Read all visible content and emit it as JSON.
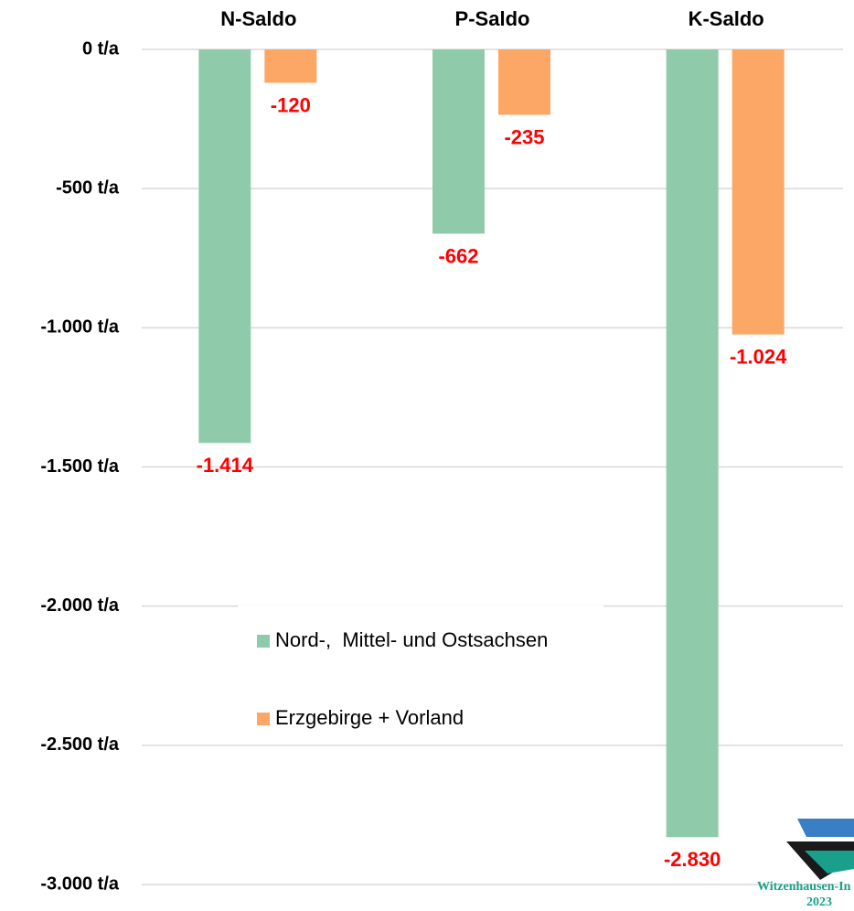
{
  "chart_data": {
    "type": "bar",
    "categories": [
      "N-Saldo",
      "P-Saldo",
      "K-Saldo"
    ],
    "series": [
      {
        "name": "Nord-,  Mittel- und Ostsachsen",
        "color": "#8fcbab",
        "values": [
          -1414,
          -662,
          -2830
        ],
        "value_labels": [
          "-1.414",
          "-662",
          "-2.830"
        ]
      },
      {
        "name": "Erzgebirge + Vorland",
        "color": "#fda766",
        "values": [
          -120,
          -235,
          -1024
        ],
        "value_labels": [
          "-120",
          "-235",
          "-1.024"
        ]
      }
    ],
    "ylim": [
      -3000,
      0
    ],
    "yticks": [
      {
        "value": 0,
        "label": "0 t/a"
      },
      {
        "value": -500,
        "label": "-500 t/a"
      },
      {
        "value": -1000,
        "label": "-1.000 t/a"
      },
      {
        "value": -1500,
        "label": "-1.500 t/a"
      },
      {
        "value": -2000,
        "label": "-2.000 t/a"
      },
      {
        "value": -2500,
        "label": "-2.500 t/a"
      },
      {
        "value": -3000,
        "label": "-3.000 t/a"
      }
    ],
    "grid": true,
    "legend": "center",
    "annotations": [
      "Witzenhausen-In",
      "2023"
    ]
  }
}
